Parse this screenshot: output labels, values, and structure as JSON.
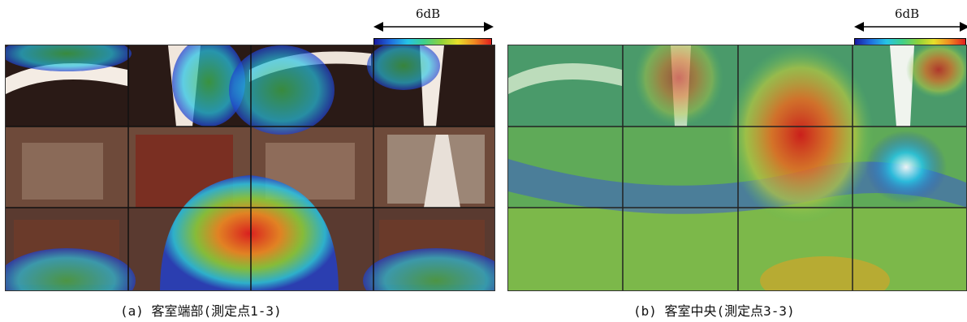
{
  "figures": [
    {
      "id": "a",
      "scale_label": "6dB",
      "caption": "(a) 客室端部(測定点1-3)",
      "colormap": [
        "#1a1aa0",
        "#1f6fe0",
        "#26c4e6",
        "#3fd08a",
        "#8ed23a",
        "#e8e02a",
        "#f08a22",
        "#e01e1e"
      ]
    },
    {
      "id": "b",
      "scale_label": "6dB",
      "caption": "(b) 客室中央(測定点3-3)",
      "colormap": [
        "#1a1aa0",
        "#1f6fe0",
        "#26c4e6",
        "#3fd08a",
        "#8ed23a",
        "#e8e02a",
        "#f08a22",
        "#e01e1e"
      ]
    }
  ]
}
